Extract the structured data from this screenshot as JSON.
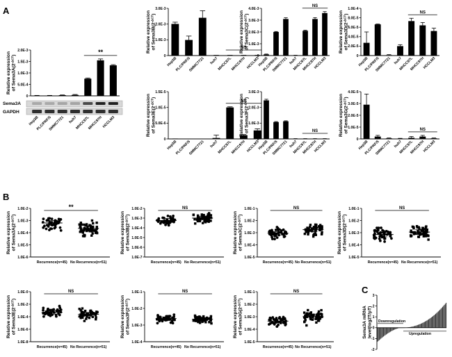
{
  "panels": {
    "A": "A",
    "B": "B",
    "C": "C"
  },
  "cell_lines": [
    "Hep3B",
    "PLC/PRF/5",
    "SMMC7721",
    "huh7",
    "MHCC97L",
    "MHCC97H",
    "HCCLM3"
  ],
  "blot": {
    "bands": [
      "Sema3A",
      "GAPDH"
    ]
  },
  "chart_data": [
    {
      "id": "A1",
      "type": "bar",
      "title": "",
      "ylabel": [
        "Relative expression",
        "of Sema3A(2^-ΔCT)"
      ],
      "categories": [
        "Hep3B",
        "PLC/PRF/5",
        "SMMC7721",
        "huh7",
        "MHCC97L",
        "MHCC97H",
        "HCCLM3"
      ],
      "values": [
        1e-05,
        1e-05,
        3e-05,
        4e-05,
        0.00075,
        0.00155,
        0.00133
      ],
      "errors": [
        1e-05,
        1e-05,
        1e-05,
        2e-05,
        3e-05,
        6e-05,
        3e-05
      ],
      "ylim": [
        0,
        0.002
      ],
      "ticks": [
        "0",
        "5.0E-4",
        "1.0E-3",
        "1.5E-3",
        "2.0E-3"
      ],
      "annotation": {
        "text": "**",
        "from": 4,
        "to": 6
      }
    },
    {
      "id": "A2",
      "type": "bar",
      "title": "",
      "ylabel": [
        "Relative expression",
        "of Sema3B(2^-ΔCT)"
      ],
      "categories": [
        "Hep3B",
        "PLC/PRF/5",
        "SMMC7721",
        "huh7",
        "MHCC97L",
        "MHCC97H",
        "HCCLM3"
      ],
      "values": [
        0.00201,
        0.00099,
        0.0024,
        1e-05,
        1e-05,
        1e-05,
        1e-05
      ],
      "errors": [
        0.00011,
        0.00025,
        0.00045,
        1e-05,
        1e-05,
        1e-05,
        1e-05
      ],
      "ylim": [
        0,
        0.003
      ],
      "ticks": [
        "0",
        "1.0E-3",
        "2.0E-3",
        "3.0E-3"
      ],
      "annotation": {
        "text": "NS",
        "from": 4,
        "to": 6
      }
    },
    {
      "id": "A3",
      "type": "bar",
      "title": "",
      "ylabel": [
        "Relative expression",
        "of Sema3C(2^-ΔCT)"
      ],
      "categories": [
        "Hep3B",
        "PLC/PRF/5",
        "SMMC7721",
        "huh7",
        "MHCC97L",
        "MHCC97H",
        "HCCLM3"
      ],
      "values": [
        0.0001,
        0.002,
        0.0031,
        2e-05,
        0.0021,
        0.0031,
        0.0036
      ],
      "errors": [
        3e-05,
        4e-05,
        0.0001,
        1e-05,
        5e-05,
        0.00011,
        0.00012
      ],
      "ylim": [
        0,
        0.004
      ],
      "ticks": [
        "0",
        "1.0E-3",
        "2.0E-3",
        "3.0E-3",
        "4.0E-3"
      ],
      "annotation": {
        "text": "NS",
        "from": 4,
        "to": 6
      }
    },
    {
      "id": "A4",
      "type": "bar",
      "title": "",
      "ylabel": [
        "Relative expression",
        "of Sema3D(2^-ΔCT)"
      ],
      "categories": [
        "Hep3B",
        "PLC/PRF/5",
        "SMMC7721",
        "huh7",
        "MHCC97L",
        "MHCC97H",
        "HCCLM3"
      ],
      "values": [
        2.7e-05,
        6.6e-05,
        1e-06,
        2e-05,
        7.3e-05,
        6.4e-05,
        5.2e-05
      ],
      "errors": [
        2.3e-05,
        1e-06,
        1e-06,
        3e-06,
        6e-06,
        6e-06,
        6e-06
      ],
      "ylim": [
        0,
        0.0001
      ],
      "ticks": [
        "0",
        "2.0E-5",
        "4.0E-5",
        "6.0E-5",
        "8.0E-5",
        "1.0E-4"
      ],
      "annotation": {
        "text": "NS",
        "from": 4,
        "to": 6
      }
    },
    {
      "id": "A5",
      "type": "bar",
      "title": "",
      "ylabel": [
        "Relative expression",
        "of Sema3E(2^-ΔCT)"
      ],
      "categories": [
        "Hep3B",
        "PLC/PRF/5",
        "SMMC7721",
        "huh7",
        "MHCC97L",
        "MHCC97H",
        "HCCLM3"
      ],
      "values": [
        3e-08,
        1e-08,
        1e-08,
        3e-07,
        1e-05,
        1.2e-06,
        2.7e-06
      ],
      "errors": [
        1e-08,
        1e-08,
        1e-08,
        9e-07,
        2e-07,
        2e-07,
        5e-07
      ],
      "ylim": [
        0,
        1.5e-05
      ],
      "ticks": [
        "0",
        "5.0E-6",
        "1.0E-5",
        "1.5E-5"
      ],
      "annotation": {
        "text": "NS",
        "from": 4,
        "to": 6
      }
    },
    {
      "id": "A6",
      "type": "bar",
      "title": "",
      "ylabel": [
        "Relative expression",
        "of Sema3F(2^-ΔCT)"
      ],
      "categories": [
        "Hep3B",
        "PLC/PRF/5",
        "SMMC7721",
        "huh7",
        "MHCC97L",
        "MHCC97H",
        "HCCLM3"
      ],
      "values": [
        0.00245,
        0.00107,
        0.00112,
        1e-05,
        1e-05,
        1e-05,
        1e-05
      ],
      "errors": [
        7e-05,
        3e-05,
        3e-05,
        1e-05,
        1e-05,
        1e-05,
        1e-05
      ],
      "ylim": [
        0,
        0.003
      ],
      "ticks": [
        "0",
        "1.0E-3",
        "2.0E-3",
        "3.0E-3"
      ],
      "annotation": {
        "text": "NS",
        "from": 4,
        "to": 6
      }
    },
    {
      "id": "A7",
      "type": "bar",
      "title": "",
      "ylabel": [
        "Relative expression",
        "of Sema3G(2^-ΔCT)"
      ],
      "categories": [
        "Hep3B",
        "PLC/PRF/5",
        "SMMC7721",
        "huh7",
        "MHCC97L",
        "MHCC97H",
        "HCCLM3"
      ],
      "values": [
        2.9e-05,
        2e-06,
        5e-07,
        3e-07,
        1e-06,
        2e-06,
        5e-07
      ],
      "errors": [
        9e-06,
        1e-06,
        3e-07,
        2e-07,
        1e-06,
        1e-06,
        3e-07
      ],
      "ylim": [
        0,
        4e-05
      ],
      "ticks": [
        "0",
        "1.0E-5",
        "2.0E-5",
        "3.0E-5",
        "4.0E-5"
      ],
      "annotation": {
        "text": "NS",
        "from": 4,
        "to": 6
      }
    },
    {
      "id": "B1",
      "type": "scatter",
      "ylabel": [
        "Relative expression",
        "of Sema3A(2^-ΔCT)"
      ],
      "categories": [
        "Recurrence(n=45)",
        "No Recurrence(n=51)"
      ],
      "n": [
        45,
        51
      ],
      "ylim_exp": [
        -6,
        -2
      ],
      "ticks": [
        "1.0E-6",
        "1.0E-5",
        "1.0E-4",
        "1.0E-3",
        "1.0E-2"
      ],
      "group_means_exp": [
        -3.2,
        -3.65
      ],
      "spread_exp": [
        0.55,
        0.5
      ],
      "annotation": "**"
    },
    {
      "id": "B2",
      "type": "scatter",
      "ylabel": [
        "Relative expression",
        "of Sema3B(2^-ΔCT)"
      ],
      "categories": [
        "Recurrence(n=45)",
        "No Recurrence(n=51)"
      ],
      "n": [
        45,
        51
      ],
      "ylim_exp": [
        -7,
        -2
      ],
      "ticks": [
        "1.0E-7",
        "1.0E-6",
        "1.0E-5",
        "1.0E-4",
        "1.0E-3",
        "1.0E-2"
      ],
      "group_means_exp": [
        -3.25,
        -3.0
      ],
      "spread_exp": [
        0.6,
        0.55
      ],
      "annotation": "NS"
    },
    {
      "id": "B3",
      "type": "scatter",
      "ylabel": [
        "Relative expression",
        "of Sema3C(2^-ΔCT)"
      ],
      "categories": [
        "Recurrence(n=45)",
        "No Recurrence(n=51)"
      ],
      "n": [
        45,
        51
      ],
      "ylim_exp": [
        -5,
        -1
      ],
      "ticks": [
        "1.0E-5",
        "1.0E-4",
        "1.0E-3",
        "1.0E-2",
        "1.0E-1"
      ],
      "group_means_exp": [
        -3.05,
        -2.75
      ],
      "spread_exp": [
        0.38,
        0.48
      ],
      "annotation": "NS"
    },
    {
      "id": "B4",
      "type": "scatter",
      "ylabel": [
        "Relative expression",
        "of Sema3D(2^-ΔCT)"
      ],
      "categories": [
        "Recurrence(n=45)",
        "No Recurrence(n=51)"
      ],
      "n": [
        45,
        51
      ],
      "ylim_exp": [
        -5,
        -1
      ],
      "ticks": [
        "1.0E-5",
        "1.0E-4",
        "1.0E-3",
        "1.0E-2",
        "1.0E-1"
      ],
      "group_means_exp": [
        -3.15,
        -2.95
      ],
      "spread_exp": [
        0.55,
        0.55
      ],
      "annotation": "NS"
    },
    {
      "id": "B5",
      "type": "scatter",
      "ylabel": [
        "Relative expression",
        "of Sema3E(2^-ΔCT)"
      ],
      "categories": [
        "Recurrence(n=45)",
        "No Recurrence(n=51)"
      ],
      "n": [
        45,
        51
      ],
      "ylim_exp": [
        -8,
        0
      ],
      "ticks": [
        "1.0E-8",
        "1.0E-6",
        "1.0E-4",
        "1.0E-2",
        "1.0E-0"
      ],
      "group_means_exp": [
        -3.3,
        -3.6
      ],
      "spread_exp": [
        0.8,
        0.8
      ],
      "annotation": "NS"
    },
    {
      "id": "B6",
      "type": "scatter",
      "ylabel": [
        "Relative expression",
        "of Sema3F(2^-ΔCT)"
      ],
      "categories": [
        "Recurrence(n=45)",
        "No Recurrence(n=51)"
      ],
      "n": [
        45,
        51
      ],
      "ylim_exp": [
        -4,
        -1
      ],
      "ticks": [
        "1.0E-4",
        "1.0E-3",
        "1.0E-2",
        "1.0E-1"
      ],
      "group_means_exp": [
        -2.6,
        -2.65
      ],
      "spread_exp": [
        0.25,
        0.25
      ],
      "annotation": "NS"
    },
    {
      "id": "B7",
      "type": "scatter",
      "ylabel": [
        "Relative expression",
        "of Sema3G(2^-ΔCT)"
      ],
      "categories": [
        "Recurrence(n=45)",
        "No Recurrence(n=51)"
      ],
      "n": [
        45,
        51
      ],
      "ylim_exp": [
        -5,
        -1
      ],
      "ticks": [
        "1.0E-5",
        "1.0E-4",
        "1.0E-3",
        "1.0E-2",
        "1.0E-1"
      ],
      "group_means_exp": [
        -3.35,
        -3.0
      ],
      "spread_exp": [
        0.42,
        0.5
      ],
      "annotation": "NS"
    },
    {
      "id": "C",
      "type": "bar",
      "ylabel": [
        "Sema3A mRNA",
        "level(log2T/pT)"
      ],
      "ylim": [
        -2,
        3
      ],
      "ticks": [
        "-2",
        "-1",
        "0",
        "1",
        "2",
        "3"
      ],
      "n_samples": 80,
      "min_value": -1.3,
      "max_value": 2.3,
      "labels": {
        "down": "Downregulation",
        "up": "Upregulation"
      }
    }
  ]
}
